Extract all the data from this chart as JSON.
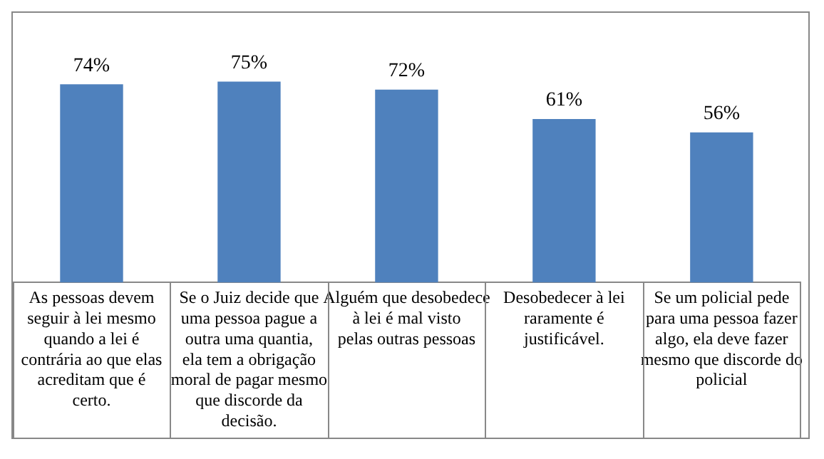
{
  "chart_data": {
    "type": "bar",
    "categories": [
      "As pessoas devem seguir à lei mesmo quando a lei é contrária ao que elas acreditam que é certo.",
      "Se o Juiz decide que uma pessoa pague a outra uma quantia, ela tem a obrigação moral de pagar mesmo que discorde da decisão.",
      "Alguém que desobedece à lei é mal visto pelas outras pessoas",
      "Desobedecer à lei raramente é justificável.",
      "Se um policial pede para uma pessoa fazer algo, ela deve fazer mesmo que discorde do policial"
    ],
    "values": [
      74,
      75,
      72,
      61,
      56
    ],
    "value_labels": [
      "74%",
      "75%",
      "72%",
      "61%",
      "56%"
    ],
    "color": "#4f81bd",
    "grid": false,
    "legend": false
  }
}
